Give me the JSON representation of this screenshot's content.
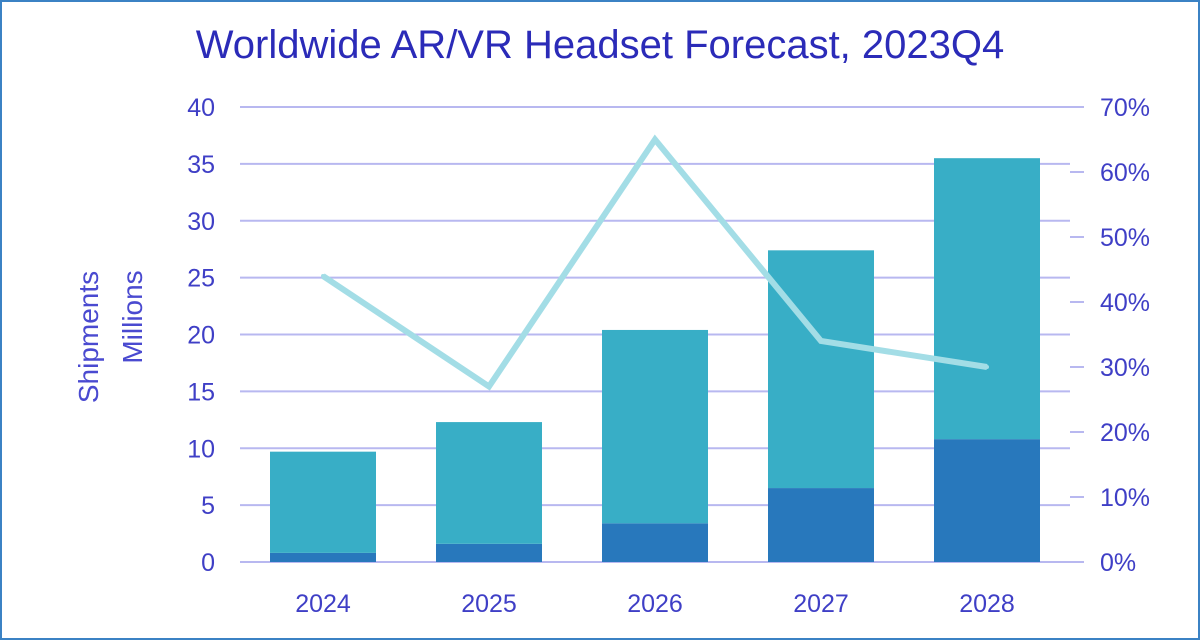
{
  "chart_data": {
    "type": "bar",
    "title": "Worldwide AR/VR Headset Forecast, 2023Q4",
    "categories": [
      "2024",
      "2025",
      "2026",
      "2027",
      "2028"
    ],
    "stacked": true,
    "series": [
      {
        "type": "bar",
        "axis": "left",
        "color": "#2878bc",
        "values": [
          0.8,
          1.6,
          3.4,
          6.5,
          10.8
        ]
      },
      {
        "type": "bar",
        "axis": "left",
        "color": "#38aec6",
        "values": [
          8.9,
          10.7,
          17.0,
          20.9,
          24.7
        ]
      },
      {
        "type": "line",
        "axis": "right",
        "color": "#a3dde6",
        "values": [
          44,
          27,
          65,
          34,
          30
        ]
      }
    ],
    "ylabel_lines": [
      "Shipments",
      "Millions"
    ],
    "ylim": [
      0,
      40
    ],
    "yticks": [
      "0",
      "5",
      "10",
      "15",
      "20",
      "25",
      "30",
      "35",
      "40"
    ],
    "y2lim": [
      0,
      70
    ],
    "y2ticks": [
      "0%",
      "10%",
      "20%",
      "30%",
      "40%",
      "50%",
      "60%",
      "70%"
    ],
    "grid": true,
    "legend": "none",
    "colors": {
      "title": "#2b2bb8",
      "ticks": "#3f3fc6",
      "grid": "#b8b8f0",
      "frame": "#3b82c4"
    }
  }
}
